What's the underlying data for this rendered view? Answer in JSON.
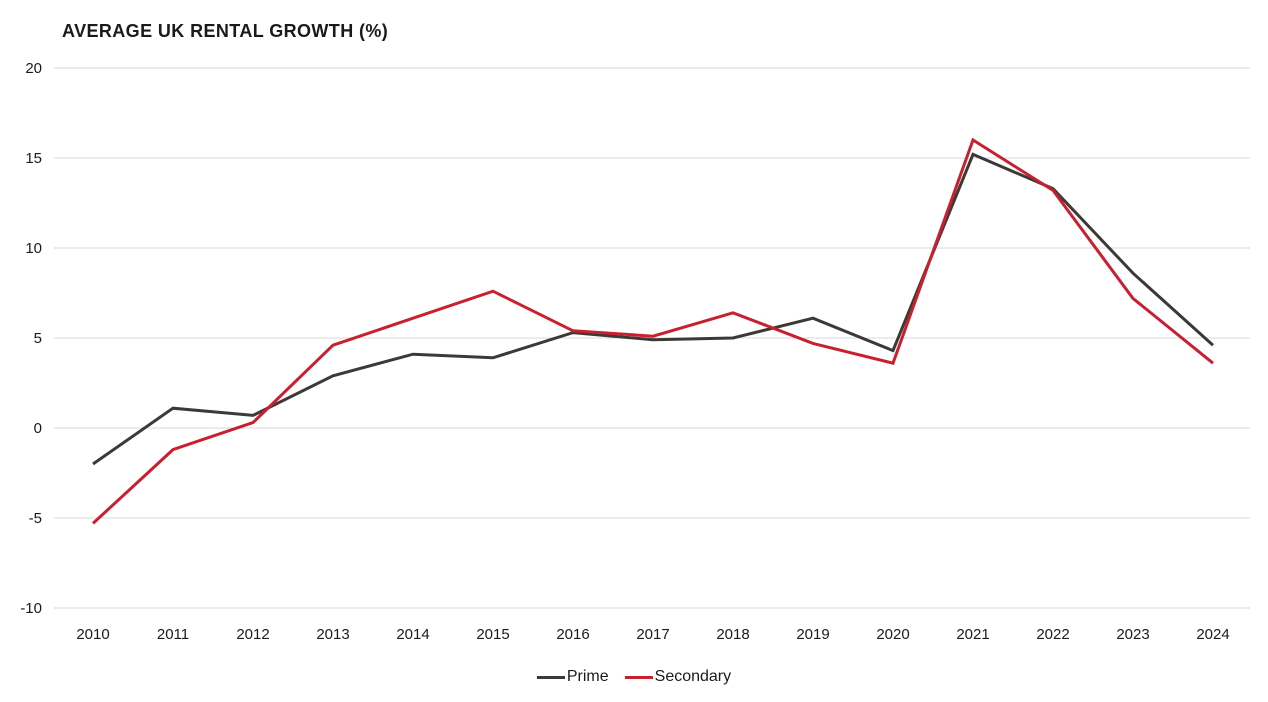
{
  "chart_data": {
    "type": "line",
    "title": "AVERAGE UK RENTAL GROWTH (%)",
    "x": [
      2010,
      2011,
      2012,
      2013,
      2014,
      2015,
      2016,
      2017,
      2018,
      2019,
      2020,
      2021,
      2022,
      2023,
      2024
    ],
    "series": [
      {
        "name": "Prime",
        "color": "#3d3935",
        "values": [
          -2.0,
          1.1,
          0.7,
          2.9,
          4.1,
          3.9,
          5.3,
          4.9,
          5.0,
          6.1,
          4.3,
          15.2,
          13.3,
          8.6,
          4.6
        ]
      },
      {
        "name": "Secondary",
        "color": "#c8202f",
        "values": [
          -5.3,
          -1.2,
          0.3,
          4.6,
          6.1,
          7.6,
          5.4,
          5.1,
          6.4,
          4.7,
          3.6,
          16.0,
          13.2,
          7.2,
          3.6
        ]
      }
    ],
    "ylim": [
      -10,
      20
    ],
    "yticks": [
      20,
      15,
      10,
      5,
      0,
      -5,
      -10
    ],
    "ytick_labels": [
      "20",
      "15",
      "10",
      "5",
      "0",
      "-5",
      "-10"
    ],
    "xlabel": "",
    "ylabel": "",
    "grid": "horizontal",
    "gridline_color": "#d9d9d9",
    "text_color": "#1a1a1a",
    "background_color": "#ffffff",
    "legend_position": "bottom-center"
  }
}
